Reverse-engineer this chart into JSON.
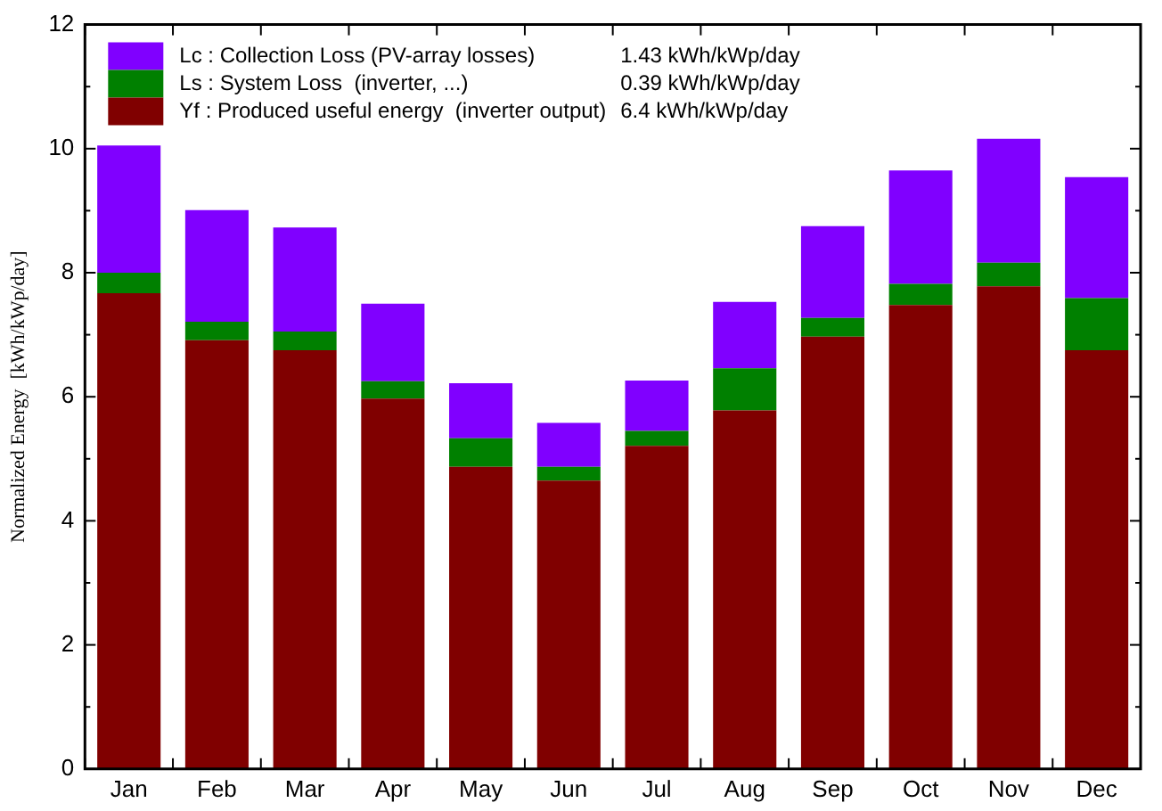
{
  "chart_data": {
    "type": "bar",
    "stacked": true,
    "ylabel": "Normalized Energy  [kWh/kWp/day]",
    "categories": [
      "Jan",
      "Feb",
      "Mar",
      "Apr",
      "May",
      "Jun",
      "Jul",
      "Aug",
      "Sep",
      "Oct",
      "Nov",
      "Dec"
    ],
    "series": [
      {
        "name": "Yf : Produced useful energy  (inverter output)",
        "color": "#800000",
        "values": [
          7.67,
          6.91,
          6.75,
          5.97,
          4.87,
          4.65,
          5.21,
          5.78,
          6.97,
          7.48,
          7.78,
          6.75
        ]
      },
      {
        "name": "Ls : System Loss  (inverter, ...)",
        "color": "#008000",
        "values": [
          0.33,
          0.3,
          0.3,
          0.28,
          0.46,
          0.22,
          0.24,
          0.68,
          0.3,
          0.34,
          0.38,
          0.84
        ]
      },
      {
        "name": "Lc : Collection Loss (PV-array losses)",
        "color": "#8000ff",
        "values": [
          2.05,
          1.8,
          1.68,
          1.25,
          0.89,
          0.71,
          0.81,
          1.07,
          1.48,
          1.83,
          2.0,
          1.95
        ]
      }
    ],
    "annotations": [
      "6.4 kWh/kWp/day",
      "0.39 kWh/kWp/day",
      "1.43 kWh/kWp/day"
    ],
    "ylim": [
      0,
      12
    ],
    "yticks": [
      0,
      2,
      4,
      6,
      8,
      10,
      12
    ],
    "grid": false,
    "legend": "top left"
  }
}
